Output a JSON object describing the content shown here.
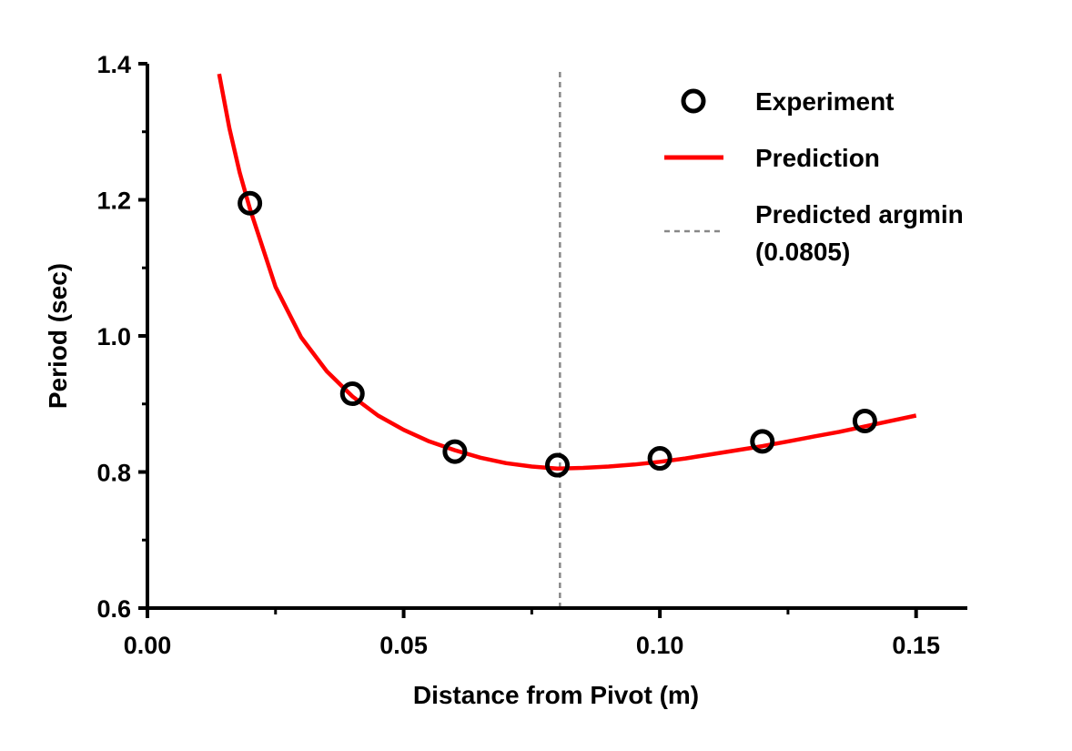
{
  "chart_data": {
    "type": "scatter",
    "title": "",
    "xlabel": "Distance from Pivot (m)",
    "ylabel": "Period (sec)",
    "xlim": [
      0.0,
      0.16
    ],
    "ylim": [
      0.6,
      1.4
    ],
    "xticks": [
      0.0,
      0.05,
      0.1,
      0.15
    ],
    "xtick_labels": [
      "0.00",
      "0.05",
      "0.10",
      "0.15"
    ],
    "x_minor_ticks": [
      0.025,
      0.075,
      0.125
    ],
    "yticks": [
      0.6,
      0.8,
      1.0,
      1.2,
      1.4
    ],
    "ytick_labels": [
      "0.6",
      "0.8",
      "1.0",
      "1.2",
      "1.4"
    ],
    "y_minor_ticks": [
      0.7,
      0.9,
      1.1,
      1.3
    ],
    "grid": false,
    "legend_position": "top-right",
    "series": [
      {
        "name": "Experiment",
        "kind": "scatter",
        "marker": "open-circle",
        "color": "#000000",
        "x": [
          0.02,
          0.04,
          0.06,
          0.08,
          0.1,
          0.12,
          0.14
        ],
        "y": [
          1.195,
          0.915,
          0.83,
          0.81,
          0.82,
          0.845,
          0.875
        ]
      },
      {
        "name": "Prediction",
        "kind": "line",
        "color": "#ff0000",
        "x": [
          0.014,
          0.016,
          0.018,
          0.02,
          0.025,
          0.03,
          0.035,
          0.04,
          0.045,
          0.05,
          0.055,
          0.06,
          0.065,
          0.07,
          0.075,
          0.08,
          0.085,
          0.09,
          0.095,
          0.1,
          0.105,
          0.11,
          0.115,
          0.12,
          0.125,
          0.13,
          0.135,
          0.14,
          0.145,
          0.15
        ],
        "y": [
          1.385,
          1.305,
          1.24,
          1.187,
          1.072,
          0.998,
          0.948,
          0.911,
          0.883,
          0.862,
          0.845,
          0.832,
          0.821,
          0.813,
          0.808,
          0.805,
          0.806,
          0.808,
          0.811,
          0.815,
          0.82,
          0.826,
          0.832,
          0.838,
          0.845,
          0.852,
          0.859,
          0.867,
          0.875,
          0.883
        ]
      },
      {
        "name": "Predicted argmin\n(0.0805)",
        "kind": "vline",
        "color": "#888888",
        "style": "dashed",
        "x": 0.0805
      }
    ]
  }
}
